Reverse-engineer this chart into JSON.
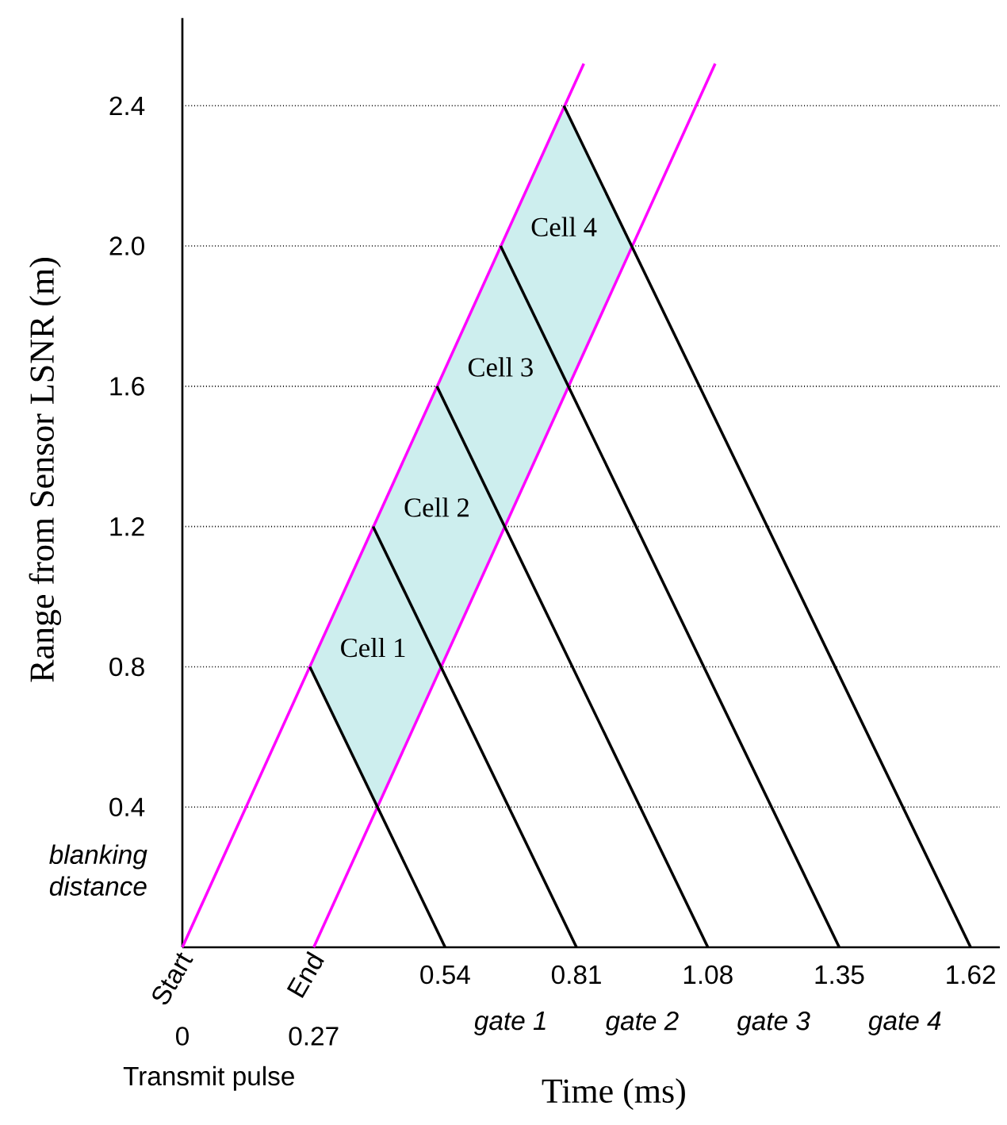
{
  "chart_data": {
    "type": "line",
    "xlabel": "Time (ms)",
    "ylabel": "Range from Sensor LSNR (m)",
    "xlim": [
      0,
      1.68
    ],
    "ylim": [
      0,
      2.65
    ],
    "xticks": [
      0.54,
      0.81,
      1.08,
      1.35,
      1.62
    ],
    "yticks": [
      0.4,
      0.8,
      1.2,
      1.6,
      {
        "value": 2.0,
        "label": "2.0"
      },
      2.4
    ],
    "grid": "y",
    "series": [
      {
        "type": "area",
        "color": "#cdeeee",
        "x": [
          0.262,
          0.401,
          0.924,
          0.784,
          0.262
        ],
        "values": [
          0.8,
          0.4,
          2.0,
          2.4,
          0.8
        ]
      },
      {
        "color": "#ff00ff",
        "x": [
          0,
          0.825
        ],
        "values": [
          0,
          2.52
        ]
      },
      {
        "color": "#ff00ff",
        "x": [
          0.27,
          1.095
        ],
        "values": [
          0,
          2.52
        ]
      },
      {
        "color": "#000000",
        "x": [
          0.54,
          0.262
        ],
        "values": [
          0,
          0.8
        ]
      },
      {
        "color": "#000000",
        "x": [
          0.81,
          0.392
        ],
        "values": [
          0,
          1.2
        ]
      },
      {
        "color": "#000000",
        "x": [
          1.08,
          0.523
        ],
        "values": [
          0,
          1.6
        ]
      },
      {
        "color": "#000000",
        "x": [
          1.35,
          0.654
        ],
        "values": [
          0,
          2.0
        ]
      },
      {
        "color": "#000000",
        "x": [
          1.62,
          0.784
        ],
        "values": [
          0,
          2.4
        ]
      }
    ],
    "annotations": [
      "Start",
      "End",
      "0",
      "0.27",
      "gate 1",
      "gate 2",
      "gate 3",
      "gate 4",
      "Cell 1",
      "Cell 2",
      "Cell 3",
      "Cell 4",
      "Transmit pulse",
      "blanking distance"
    ]
  }
}
